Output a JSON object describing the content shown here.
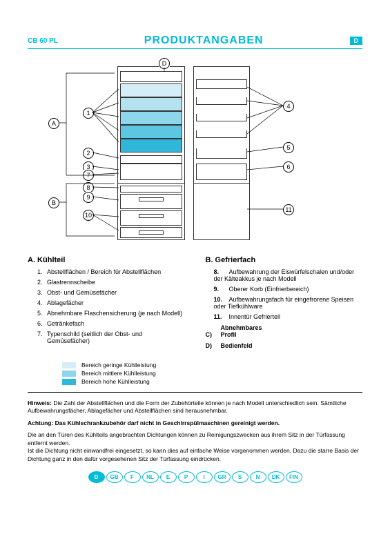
{
  "header": {
    "model": "CB 60 PL",
    "title": "PRODUKTANGABEN",
    "lang": "D"
  },
  "diagram": {
    "callouts": {
      "A": "A",
      "B": "B",
      "D": "D",
      "n1": "1",
      "n2": "2",
      "n3": "3",
      "n4": "4",
      "n5": "5",
      "n6": "6",
      "n7": "7",
      "n8": "8",
      "n9": "9",
      "n10": "10",
      "n11": "11"
    },
    "shelf_colors": [
      "#d5edf6",
      "#b4e2f0",
      "#8dd6ec",
      "#5cc6e3",
      "#2fb7da"
    ]
  },
  "sections": {
    "A": {
      "head": "A.   Kühlteil",
      "items": [
        "Abstellflächen / Bereich für Abstellflächen",
        "Glastrennscheibe",
        "Obst- und Gemüsefächer",
        "Ablagefächer",
        "Abnehmbare Flaschensicherung (je nach Modell)",
        "Getränkefach",
        "Typenschild (seitlich der Obst- und Gemüsefächer)"
      ]
    },
    "B": {
      "head": "B.   Gefrierfach",
      "items": [
        {
          "n": "8.",
          "t": "Aufbewahrung der Eiswürfelschalen und/oder der Kälteakkus je nach Modell"
        },
        {
          "n": "9.",
          "t": "Oberer Korb (Einfrierbereich)"
        },
        {
          "n": "10.",
          "t": "Aufbewahrungsfach für eingefrorene Speisen oder Tiefkühlware"
        },
        {
          "n": "11.",
          "t": "Innentür Gefrierteil"
        }
      ]
    },
    "CD": [
      {
        "n": "C)",
        "t": "Abnehmbares Profil"
      },
      {
        "n": "D)",
        "t": "Bedienfeld"
      }
    ]
  },
  "legend": {
    "rows": [
      {
        "color": "#d5edf6",
        "label": "Bereich geringe Kühlleistung"
      },
      {
        "color": "#8dd6ec",
        "label": "Bereich mittlere Kühlleistung"
      },
      {
        "color": "#2fb7da",
        "label": "Bereich hohe Kühlleistung"
      }
    ]
  },
  "notes": {
    "hinweis_label": "Hinweis:",
    "hinweis": "Die Zahl der Abstellflächen und die Form der Zubehörteile können je nach Modell unterschiedlich sein. Sämtliche Aufbewahrungsfächer, Ablagefächer und Abstellflächen sind herausnehmbar.",
    "achtung": "Achtung: Das Kühlschrankzubehör darf nicht in Geschirrspülmaschinen gereinigt werden.",
    "body": "Die an den Türen des Kühlteils angebrachten Dichtungen können zu Reinigungszwecken aus ihrem Sitz in der Türfassung entfernt werden.\nIst die Dichtung nicht einwandfrei eingesetzt, so kann dies auf einfache Weise vorgenommen werden. Dazu die starre Basis der Dichtung ganz in den dafür vorgesehenen Sitz der Türfassung eindrücken."
  },
  "languages": [
    "D",
    "GB",
    "F",
    "NL",
    "E",
    "P",
    "I",
    "GR",
    "S",
    "N",
    "DK",
    "FIN"
  ],
  "active_lang": "D"
}
